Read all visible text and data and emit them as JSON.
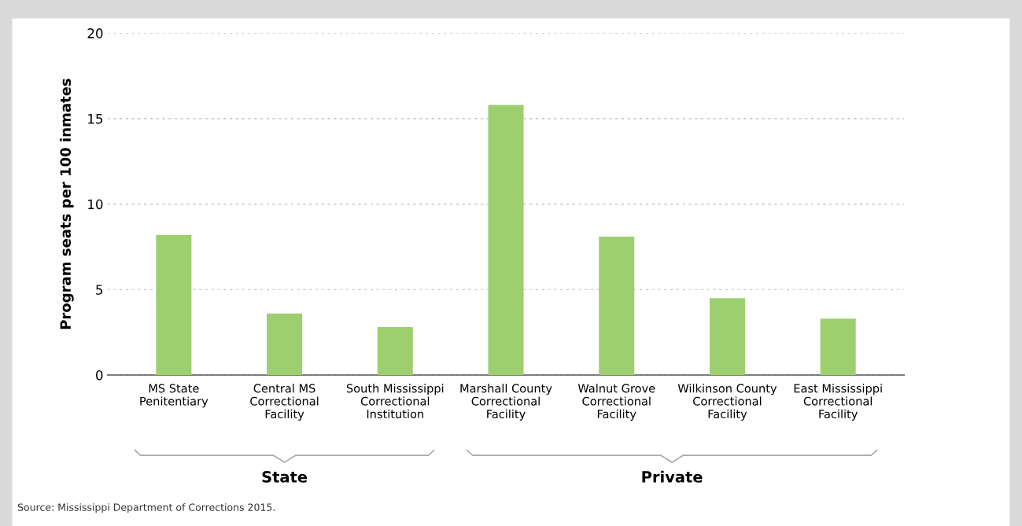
{
  "chart_data": {
    "type": "bar",
    "categories": [
      "MS State\nPenitentiary",
      "Central MS\nCorrectional\nFacility",
      "South Mississippi\nCorrectional\nInstitution",
      "Marshall County\nCorrectional\nFacility",
      "Walnut Grove\nCorrectional\nFacility",
      "Wilkinson County\nCorrectional\nFacility",
      "East Mississippi\nCorrectional\nFacility"
    ],
    "values": [
      8.2,
      3.6,
      2.8,
      15.8,
      8.1,
      4.5,
      3.3
    ],
    "color": "#9dcf6f",
    "ylabel": "Program seats per 100 inmates",
    "ylim": [
      0,
      20
    ],
    "yticks": [
      0,
      5,
      10,
      15,
      20
    ],
    "grid": "y",
    "annotations": [
      "State",
      "Private",
      "Source: Mississippi Department of Corrections 2015."
    ]
  }
}
